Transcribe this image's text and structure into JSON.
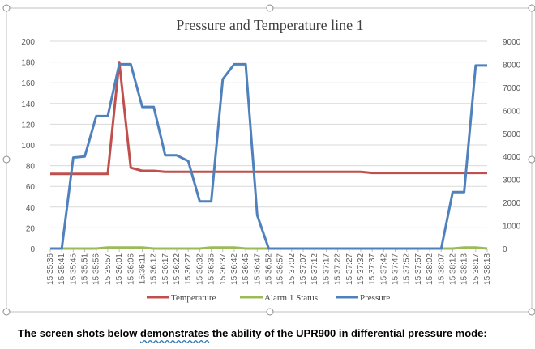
{
  "caption": {
    "before": "The screen shots below ",
    "word": "demonstrates",
    "after": " the ability of the UPR900 in differential pressure mode:"
  },
  "chart_data": {
    "type": "line",
    "title": "Pressure and Temperature line 1",
    "xlabel": "",
    "ylabel": "",
    "ylim": [
      0,
      200
    ],
    "y2lim": [
      0,
      9000
    ],
    "yticks": [
      0,
      20,
      40,
      60,
      80,
      100,
      120,
      140,
      160,
      180,
      200
    ],
    "y2ticks": [
      0,
      1000,
      2000,
      3000,
      4000,
      5000,
      6000,
      7000,
      8000,
      9000
    ],
    "grid": true,
    "legend": "bottom",
    "categories": [
      "15:35:36",
      "15:35:41",
      "15:35:46",
      "15:35:51",
      "15:35:56",
      "15:35:57",
      "15:36:01",
      "15:36:06",
      "15:36:11",
      "15:36:12",
      "15:36:17",
      "15:36:22",
      "15:36:27",
      "15:36:32",
      "15:36:35",
      "15:36:37",
      "15:36:42",
      "15:36:45",
      "15:36:47",
      "15:36:52",
      "15:36:57",
      "15:37:02",
      "15:37:07",
      "15:37:12",
      "15:37:17",
      "15:37:22",
      "15:37:27",
      "15:37:32",
      "15:37:37",
      "15:37:42",
      "15:37:47",
      "15:37:52",
      "15:37:57",
      "15:38:02",
      "15:38:07",
      "15:38:12",
      "15:38:13",
      "15:38:17",
      "15:38:18"
    ],
    "series": [
      {
        "name": "Temperature",
        "axis": "left",
        "color": "#c0504d",
        "values": [
          72,
          72,
          72,
          72,
          72,
          72,
          180,
          78,
          75,
          75,
          74,
          74,
          74,
          74,
          74,
          74,
          74,
          74,
          74,
          74,
          74,
          74,
          74,
          74,
          74,
          74,
          74,
          74,
          73,
          73,
          73,
          73,
          73,
          73,
          73,
          73,
          73,
          73,
          73
        ]
      },
      {
        "name": "Alarm 1 Status",
        "axis": "left",
        "color": "#9bbb59",
        "values": [
          0,
          0,
          0,
          0,
          0,
          1,
          1,
          1,
          1,
          0,
          0,
          0,
          0,
          0,
          1,
          1,
          1,
          0,
          0,
          0,
          0,
          0,
          0,
          0,
          0,
          0,
          0,
          0,
          0,
          0,
          0,
          0,
          0,
          0,
          0,
          0,
          1,
          1,
          0
        ]
      },
      {
        "name": "Pressure",
        "axis": "right",
        "color": "#4f81bd",
        "values": [
          0,
          0,
          3950,
          4000,
          5750,
          5750,
          8000,
          8000,
          6150,
          6150,
          4050,
          4050,
          3800,
          2050,
          2050,
          7350,
          8000,
          8000,
          1450,
          0,
          0,
          0,
          0,
          0,
          0,
          0,
          0,
          0,
          0,
          0,
          0,
          0,
          0,
          0,
          0,
          2450,
          2450,
          7950,
          7950
        ]
      }
    ]
  }
}
